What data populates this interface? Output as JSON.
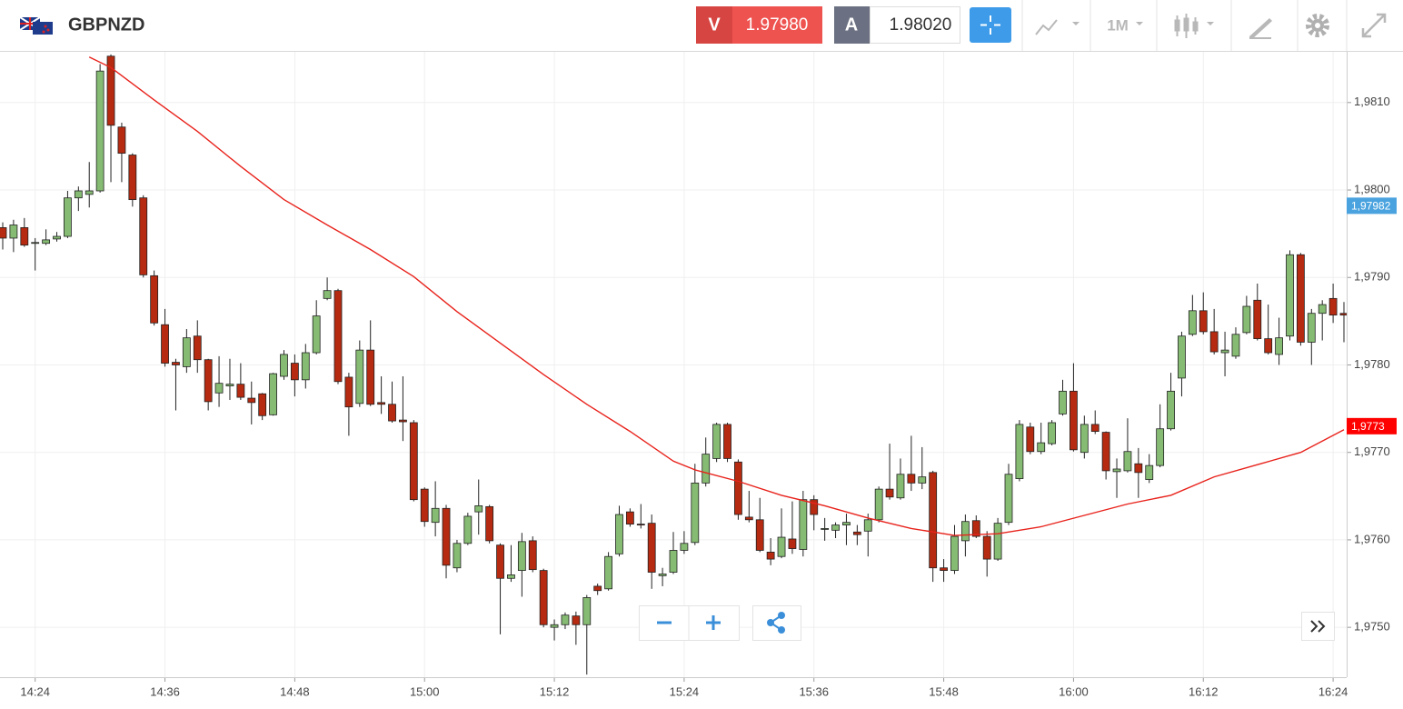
{
  "header": {
    "symbol": "GBPNZD",
    "sell_label": "V",
    "sell_price": "1.97980",
    "buy_label": "A",
    "buy_price": "1.98020",
    "timeframe": "1M"
  },
  "chart_data": {
    "type": "candlestick",
    "x": [
      "14:21",
      "14:22",
      "14:23",
      "14:24",
      "14:25",
      "14:26",
      "14:27",
      "14:28",
      "14:29",
      "14:30",
      "14:31",
      "14:32",
      "14:33",
      "14:34",
      "14:35",
      "14:36",
      "14:37",
      "14:38",
      "14:39",
      "14:40",
      "14:41",
      "14:42",
      "14:43",
      "14:44",
      "14:45",
      "14:46",
      "14:47",
      "14:48",
      "14:49",
      "14:50",
      "14:51",
      "14:52",
      "14:53",
      "14:54",
      "14:55",
      "14:56",
      "14:57",
      "14:58",
      "14:59",
      "15:00",
      "15:01",
      "15:02",
      "15:03",
      "15:04",
      "15:05",
      "15:06",
      "15:07",
      "15:08",
      "15:09",
      "15:10",
      "15:11",
      "15:12",
      "15:13",
      "15:14",
      "15:15",
      "15:16",
      "15:17",
      "15:18",
      "15:19",
      "15:20",
      "15:21",
      "15:22",
      "15:23",
      "15:24",
      "15:25",
      "15:26",
      "15:27",
      "15:28",
      "15:29",
      "15:30",
      "15:31",
      "15:32",
      "15:33",
      "15:34",
      "15:35",
      "15:36",
      "15:37",
      "15:38",
      "15:39",
      "15:40",
      "15:41",
      "15:42",
      "15:43",
      "15:44",
      "15:45",
      "15:46",
      "15:47",
      "15:48",
      "15:49",
      "15:50",
      "15:51",
      "15:52",
      "15:53",
      "15:54",
      "15:55",
      "15:56",
      "15:57",
      "15:58",
      "15:59",
      "16:00",
      "16:01",
      "16:02",
      "16:03",
      "16:04",
      "16:05",
      "16:06",
      "16:07",
      "16:08",
      "16:09",
      "16:10",
      "16:11",
      "16:12",
      "16:13",
      "16:14",
      "16:15",
      "16:16",
      "16:17",
      "16:18",
      "16:19",
      "16:20",
      "16:21",
      "16:22",
      "16:23",
      "16:24",
      "16:25"
    ],
    "open": [
      1.97957,
      1.97945,
      1.97957,
      1.97939,
      1.97939,
      1.97944,
      1.97947,
      1.97991,
      1.97995,
      1.97999,
      1.98153,
      1.98072,
      1.9804,
      1.97991,
      1.97902,
      1.97846,
      1.97803,
      1.97798,
      1.97833,
      1.97806,
      1.97768,
      1.97776,
      1.97778,
      1.97762,
      1.97767,
      1.97743,
      1.97787,
      1.97802,
      1.97783,
      1.97814,
      1.97876,
      1.97885,
      1.97786,
      1.97756,
      1.97817,
      1.97757,
      1.97755,
      1.97737,
      1.97734,
      1.97658,
      1.9762,
      1.97636,
      1.97568,
      1.97596,
      1.97632,
      1.97638,
      1.97594,
      1.97556,
      1.97565,
      1.97599,
      1.97565,
      1.975,
      1.97503,
      1.97513,
      1.97503,
      1.97547,
      1.97544,
      1.97584,
      1.97632,
      1.97618,
      1.97619,
      1.97559,
      1.97563,
      1.97588,
      1.97597,
      1.97665,
      1.97693,
      1.97732,
      1.97689,
      1.97626,
      1.97623,
      1.97586,
      1.97581,
      1.97601,
      1.97589,
      1.97646,
      1.97612,
      1.97611,
      1.97617,
      1.97609,
      1.9761,
      1.97623,
      1.97658,
      1.97648,
      1.97675,
      1.97665,
      1.97677,
      1.97568,
      1.97565,
      1.97599,
      1.97622,
      1.97604,
      1.97578,
      1.9762,
      1.9767,
      1.97729,
      1.97701,
      1.9771,
      1.97744,
      1.9777,
      1.977,
      1.97732,
      1.97723,
      1.97678,
      1.97679,
      1.97687,
      1.97669,
      1.97685,
      1.97727,
      1.97785,
      1.97835,
      1.97862,
      1.97838,
      1.97814,
      1.9781,
      1.97837,
      1.97874,
      1.9783,
      1.97812,
      1.97833,
      1.97926,
      1.97826,
      1.97859,
      1.97876,
      1.97859
    ],
    "high": [
      1.97963,
      1.97966,
      1.97968,
      1.97945,
      1.97955,
      1.97952,
      1.97999,
      1.98004,
      1.98032,
      1.98144,
      1.98155,
      1.98077,
      1.98042,
      1.97994,
      1.97908,
      1.97864,
      1.97807,
      1.97841,
      1.97851,
      1.97807,
      1.9781,
      1.97807,
      1.97802,
      1.97781,
      1.97768,
      1.97791,
      1.97817,
      1.97812,
      1.97824,
      1.97874,
      1.979,
      1.97887,
      1.97791,
      1.97828,
      1.97851,
      1.97787,
      1.97781,
      1.97787,
      1.97737,
      1.9766,
      1.97667,
      1.9764,
      1.976,
      1.97631,
      1.97669,
      1.9764,
      1.97596,
      1.97594,
      1.97608,
      1.97604,
      1.97567,
      1.97509,
      1.97517,
      1.97518,
      1.97537,
      1.9755,
      1.97586,
      1.97639,
      1.97636,
      1.97641,
      1.97629,
      1.97568,
      1.97609,
      1.9761,
      1.97687,
      1.97717,
      1.97734,
      1.97734,
      1.97692,
      1.97656,
      1.97648,
      1.97602,
      1.97636,
      1.97644,
      1.97656,
      1.97651,
      1.97625,
      1.9762,
      1.9763,
      1.97617,
      1.9763,
      1.97661,
      1.9771,
      1.97693,
      1.97719,
      1.97706,
      1.97679,
      1.97578,
      1.97617,
      1.97629,
      1.97628,
      1.9761,
      1.97625,
      1.97687,
      1.97737,
      1.97734,
      1.97734,
      1.97737,
      1.97783,
      1.97802,
      1.97742,
      1.97748,
      1.97724,
      1.97693,
      1.97739,
      1.97705,
      1.97698,
      1.97755,
      1.97791,
      1.97838,
      1.9788,
      1.97883,
      1.97864,
      1.97838,
      1.97843,
      1.97879,
      1.97893,
      1.97869,
      1.97854,
      1.97931,
      1.97928,
      1.97864,
      1.97874,
      1.97893,
      1.97872
    ],
    "low": [
      1.97932,
      1.97929,
      1.97935,
      1.97908,
      1.97937,
      1.97941,
      1.97945,
      1.97976,
      1.9798,
      1.97997,
      1.98009,
      1.98009,
      1.97981,
      1.979,
      1.97845,
      1.97798,
      1.97748,
      1.97791,
      1.97791,
      1.97748,
      1.97752,
      1.9776,
      1.9776,
      1.97732,
      1.97737,
      1.97742,
      1.97783,
      1.97764,
      1.97773,
      1.97812,
      1.97874,
      1.97778,
      1.97719,
      1.97752,
      1.97753,
      1.97744,
      1.97734,
      1.97713,
      1.97644,
      1.97615,
      1.97604,
      1.97556,
      1.97563,
      1.97594,
      1.97606,
      1.97596,
      1.97492,
      1.97552,
      1.97535,
      1.97563,
      1.975,
      1.97485,
      1.97498,
      1.9748,
      1.97446,
      1.97537,
      1.97542,
      1.97581,
      1.97615,
      1.97613,
      1.97544,
      1.97547,
      1.97561,
      1.97584,
      1.97594,
      1.97661,
      1.97689,
      1.97689,
      1.97623,
      1.9762,
      1.97586,
      1.97571,
      1.97579,
      1.97584,
      1.97581,
      1.97611,
      1.97599,
      1.97602,
      1.97594,
      1.97594,
      1.97581,
      1.9762,
      1.97646,
      1.97646,
      1.97656,
      1.97658,
      1.97552,
      1.97552,
      1.97561,
      1.97581,
      1.97602,
      1.97558,
      1.97576,
      1.97617,
      1.97667,
      1.97698,
      1.97698,
      1.97708,
      1.97742,
      1.97701,
      1.97693,
      1.97721,
      1.97669,
      1.97648,
      1.97677,
      1.97648,
      1.97665,
      1.97683,
      1.97725,
      1.97764,
      1.97833,
      1.97835,
      1.97812,
      1.97787,
      1.97807,
      1.97835,
      1.97828,
      1.97812,
      1.978,
      1.97828,
      1.97822,
      1.978,
      1.97828,
      1.97848,
      1.97826
    ],
    "close": [
      1.97945,
      1.9796,
      1.97937,
      1.9794,
      1.97943,
      1.97947,
      1.97991,
      1.97999,
      1.97999,
      1.98136,
      1.98074,
      1.98042,
      1.97989,
      1.97903,
      1.97848,
      1.97802,
      1.978,
      1.97831,
      1.97806,
      1.97758,
      1.97779,
      1.97778,
      1.97763,
      1.97757,
      1.97742,
      1.9779,
      1.97812,
      1.97783,
      1.97814,
      1.97856,
      1.97885,
      1.97781,
      1.97752,
      1.97817,
      1.97755,
      1.97755,
      1.97736,
      1.97735,
      1.97646,
      1.97621,
      1.97636,
      1.97571,
      1.97596,
      1.97627,
      1.97639,
      1.97599,
      1.97556,
      1.9756,
      1.97598,
      1.97566,
      1.97503,
      1.97503,
      1.97514,
      1.97503,
      1.97534,
      1.97542,
      1.97581,
      1.97629,
      1.97618,
      1.97617,
      1.97563,
      1.97561,
      1.97588,
      1.97596,
      1.97665,
      1.97698,
      1.97732,
      1.97693,
      1.97629,
      1.97623,
      1.97588,
      1.97578,
      1.97603,
      1.9759,
      1.97646,
      1.97629,
      1.97613,
      1.97617,
      1.9762,
      1.97606,
      1.97623,
      1.97658,
      1.97649,
      1.97675,
      1.97665,
      1.97672,
      1.97568,
      1.97565,
      1.97604,
      1.97621,
      1.97604,
      1.97578,
      1.97619,
      1.97675,
      1.97732,
      1.97701,
      1.97711,
      1.97734,
      1.9777,
      1.97703,
      1.97732,
      1.97724,
      1.97679,
      1.97681,
      1.97701,
      1.97677,
      1.97685,
      1.97727,
      1.9777,
      1.97833,
      1.97862,
      1.97838,
      1.97815,
      1.97817,
      1.97835,
      1.97867,
      1.9783,
      1.97814,
      1.97831,
      1.97926,
      1.97826,
      1.97859,
      1.97869,
      1.97857,
      1.97857
    ],
    "up_color": "#86bb73",
    "down_color": "#b52a10",
    "ma": {
      "color": "#e8221b",
      "x": [
        "14:29",
        "14:31",
        "14:35",
        "14:39",
        "14:43",
        "14:47",
        "14:51",
        "14:55",
        "14:59",
        "15:03",
        "15:07",
        "15:11",
        "15:15",
        "15:19",
        "15:23",
        "15:25",
        "15:29",
        "15:33",
        "15:37",
        "15:41",
        "15:45",
        "15:49",
        "15:53",
        "15:57",
        "16:01",
        "16:05",
        "16:09",
        "16:13",
        "16:17",
        "16:21",
        "16:25"
      ],
      "values": [
        1.98152,
        1.9814,
        1.98103,
        1.98067,
        1.98027,
        1.97989,
        1.9796,
        1.97932,
        1.97901,
        1.97861,
        1.97825,
        1.97789,
        1.97755,
        1.97724,
        1.9769,
        1.9768,
        1.97667,
        1.97651,
        1.97639,
        1.97625,
        1.97613,
        1.97605,
        1.97607,
        1.97615,
        1.97628,
        1.97641,
        1.97651,
        1.97672,
        1.97686,
        1.977,
        1.97726
      ]
    },
    "price_labels": [
      {
        "value": 1.97982,
        "label": "1,97982",
        "color": "#4aa3df"
      },
      {
        "value": 1.9773,
        "label": "1,9773",
        "color": "#ff0000"
      }
    ],
    "xlim": [
      "14:21",
      "16:25"
    ],
    "xticks": [
      "14:24",
      "14:36",
      "14:48",
      "15:00",
      "15:12",
      "15:24",
      "15:36",
      "15:48",
      "16:00",
      "16:12",
      "16:24"
    ],
    "ylim": [
      1.97443,
      1.98158
    ],
    "yticks": [
      {
        "value": 1.975,
        "label": "1,9750"
      },
      {
        "value": 1.976,
        "label": "1,9760"
      },
      {
        "value": 1.977,
        "label": "1,9770"
      },
      {
        "value": 1.978,
        "label": "1,9780"
      },
      {
        "value": 1.979,
        "label": "1,9790"
      },
      {
        "value": 1.98,
        "label": "1,9800"
      },
      {
        "value": 1.981,
        "label": "1,9810"
      }
    ],
    "grid": true
  }
}
